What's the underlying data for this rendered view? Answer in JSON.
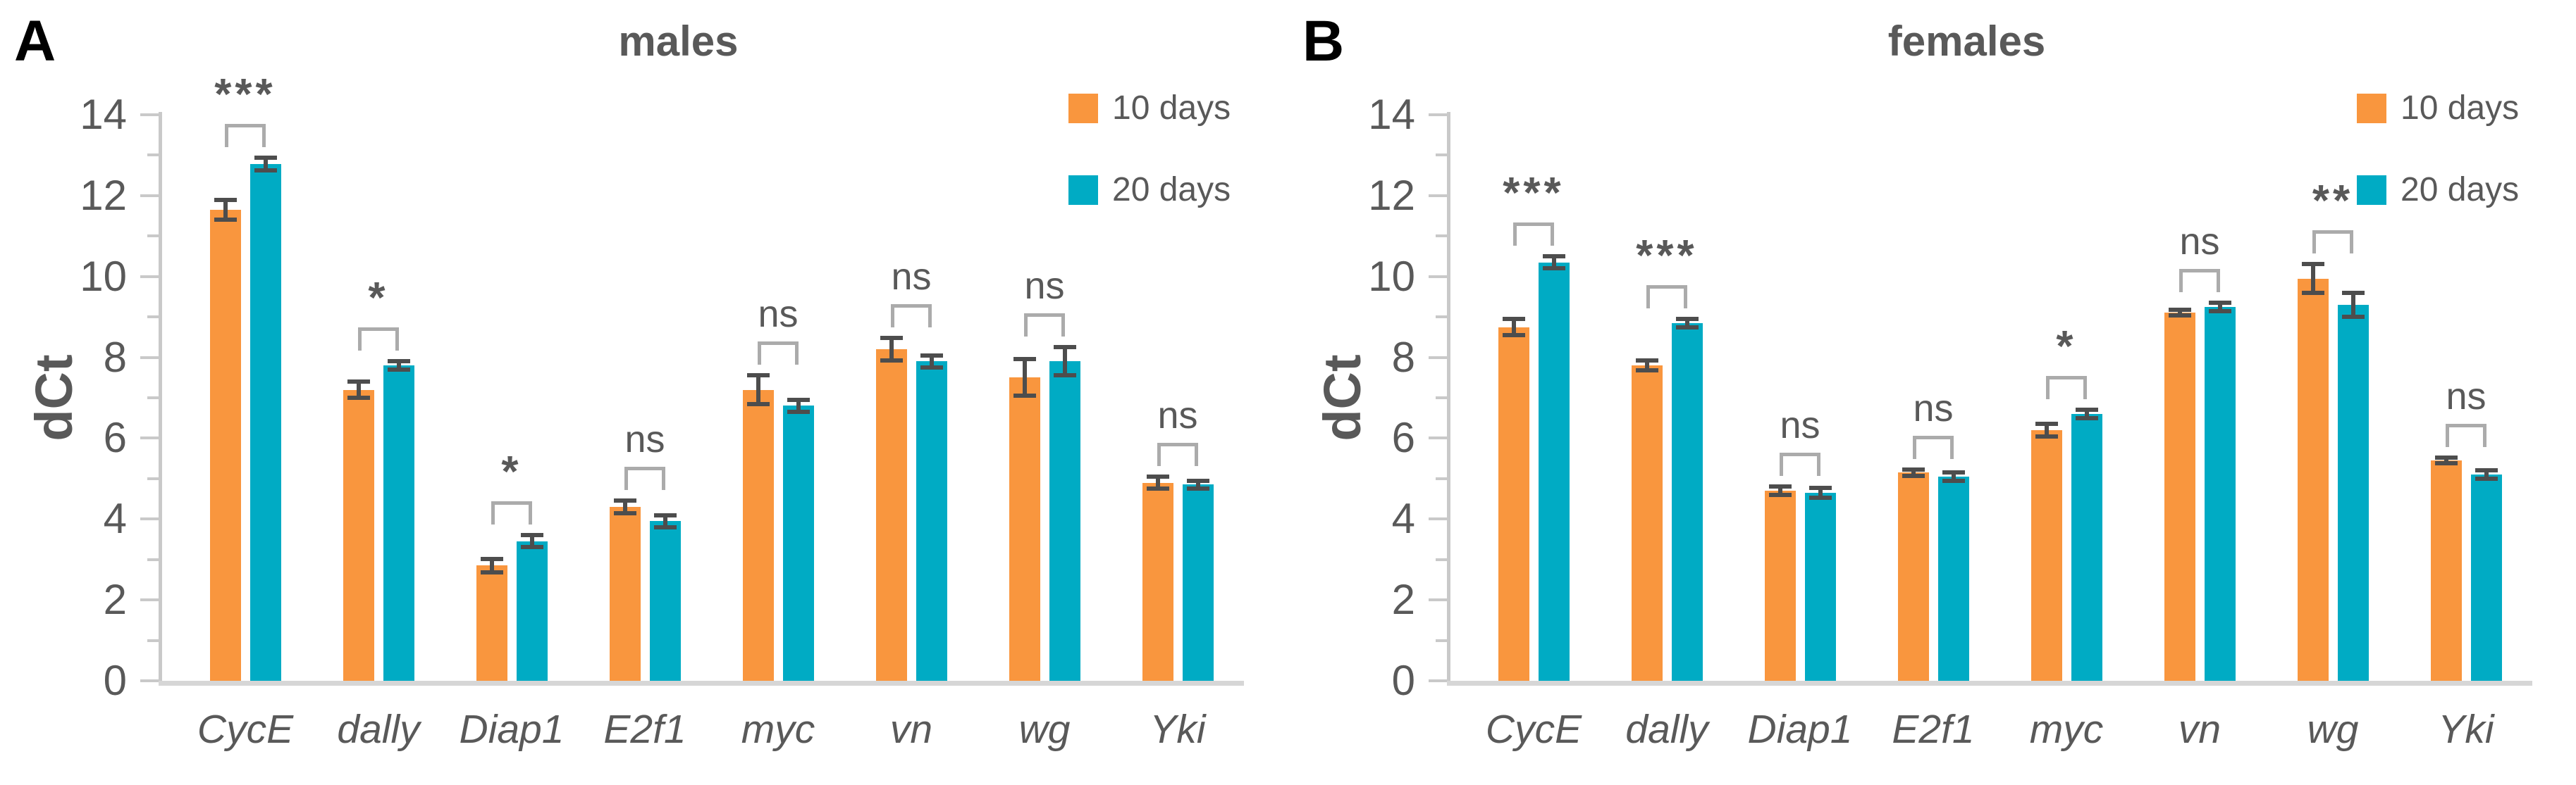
{
  "theme": {
    "background": "#FFFFFF",
    "text_color": "#595959",
    "panel_letter_color": "#000000",
    "axis_color": "#C9C9C9",
    "baseline_color": "#D6D6D6",
    "error_bar_color": "#4D4D4D",
    "bracket_color": "#ABABAB",
    "series_colors": [
      "#F9963E",
      "#00ABC4"
    ]
  },
  "chart_data": [
    {
      "type": "bar",
      "panel_label": "A",
      "title": "males",
      "ylabel": "dCt",
      "xlabel": "",
      "ylim": [
        0,
        14
      ],
      "ytick_labeled_step": 2,
      "ytick_minor_step": 1,
      "grid": false,
      "legend_position": "top-right",
      "categories": [
        "CycE",
        "dally",
        "Diap1",
        "E2f1",
        "myc",
        "vn",
        "wg",
        "Yki"
      ],
      "series": [
        {
          "name": "10 days",
          "color": "#F9963E",
          "values": [
            11.65,
            7.2,
            2.85,
            4.3,
            7.2,
            8.2,
            7.5,
            4.9
          ],
          "errors": [
            0.25,
            0.2,
            0.17,
            0.15,
            0.35,
            0.28,
            0.45,
            0.15
          ]
        },
        {
          "name": "20 days",
          "color": "#00ABC4",
          "values": [
            12.78,
            7.8,
            3.45,
            3.95,
            6.8,
            7.9,
            7.9,
            4.85
          ],
          "errors": [
            0.15,
            0.1,
            0.15,
            0.15,
            0.15,
            0.15,
            0.35,
            0.1
          ]
        }
      ],
      "significance": [
        "***",
        "*",
        "*",
        "ns",
        "ns",
        "ns",
        "ns",
        "ns"
      ]
    },
    {
      "type": "bar",
      "panel_label": "B",
      "title": "females",
      "ylabel": "dCt",
      "xlabel": "",
      "ylim": [
        0,
        14
      ],
      "ytick_labeled_step": 2,
      "ytick_minor_step": 1,
      "grid": false,
      "legend_position": "top-right",
      "categories": [
        "CycE",
        "dally",
        "Diap1",
        "E2f1",
        "myc",
        "vn",
        "wg",
        "Yki"
      ],
      "series": [
        {
          "name": "10 days",
          "color": "#F9963E",
          "values": [
            8.75,
            7.8,
            4.7,
            5.15,
            6.2,
            9.1,
            9.95,
            5.45
          ],
          "errors": [
            0.2,
            0.12,
            0.1,
            0.08,
            0.15,
            0.07,
            0.35,
            0.07
          ]
        },
        {
          "name": "20 days",
          "color": "#00ABC4",
          "values": [
            10.35,
            8.85,
            4.65,
            5.05,
            6.6,
            9.25,
            9.3,
            5.1
          ],
          "errors": [
            0.15,
            0.1,
            0.12,
            0.1,
            0.1,
            0.1,
            0.3,
            0.1
          ]
        }
      ],
      "significance": [
        "***",
        "***",
        "ns",
        "ns",
        "*",
        "ns",
        "**",
        "ns"
      ]
    }
  ]
}
